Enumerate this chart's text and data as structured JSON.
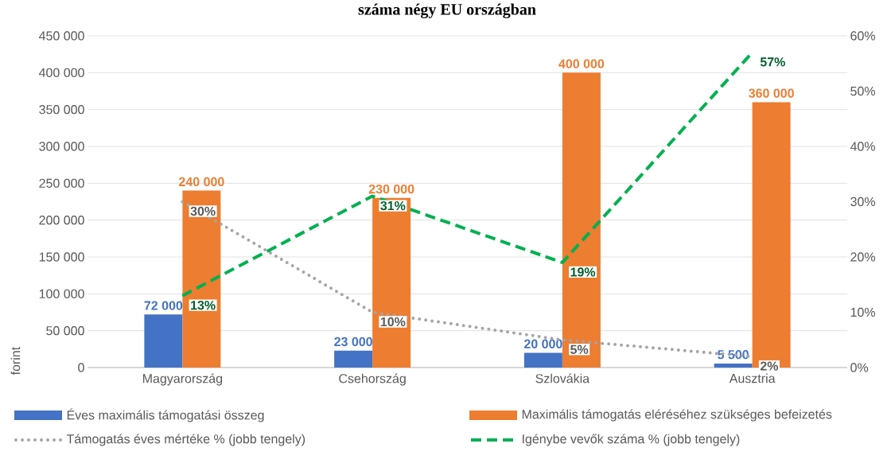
{
  "chart_data": {
    "type": "bar",
    "title": "száma négy EU országban",
    "ylabel": "forint",
    "categories": [
      "Magyarország",
      "Csehország",
      "Szlovákia",
      "Ausztria"
    ],
    "series": [
      {
        "name": "Éves maximális támogatási összeg",
        "color": "#4472c4",
        "values": [
          72000,
          23000,
          20000,
          5500
        ],
        "value_labels": [
          "72 000",
          "23 000",
          "20 000",
          "5 500"
        ]
      },
      {
        "name": "Maximális támogatás eléréséhez szükséges befeizetés",
        "color": "#ed7d31",
        "values": [
          240000,
          230000,
          400000,
          360000
        ],
        "value_labels": [
          "240 000",
          "230 000",
          "400 000",
          "360 000"
        ]
      },
      {
        "name": "Támogatás éves mértéke % (jobb tengely)",
        "type": "line",
        "axis": "y2",
        "color": "#a5a5a5",
        "line_style": "dotted",
        "values": [
          30,
          10,
          5,
          2
        ],
        "value_labels": [
          "30%",
          "10%",
          "5%",
          "2%"
        ]
      },
      {
        "name": "Igénybe vevők száma % (jobb tengely)",
        "type": "line",
        "axis": "y2",
        "color": "#00b050",
        "line_style": "dashed",
        "values": [
          13,
          31,
          19,
          57
        ],
        "value_labels": [
          "13%",
          "31%",
          "19%",
          "57%"
        ]
      }
    ],
    "ylim": [
      0,
      450000
    ],
    "yticks": [
      {
        "value": 0,
        "label": "0"
      },
      {
        "value": 50000,
        "label": "50 000"
      },
      {
        "value": 100000,
        "label": "100 000"
      },
      {
        "value": 150000,
        "label": "150 000"
      },
      {
        "value": 200000,
        "label": "200 000"
      },
      {
        "value": 250000,
        "label": "250 000"
      },
      {
        "value": 300000,
        "label": "300 000"
      },
      {
        "value": 350000,
        "label": "350 000"
      },
      {
        "value": 400000,
        "label": "400 000"
      },
      {
        "value": 450000,
        "label": "450 000"
      }
    ],
    "y2lim": [
      0,
      60
    ],
    "y2ticks": [
      {
        "value": 0,
        "label": "0%"
      },
      {
        "value": 10,
        "label": "10%"
      },
      {
        "value": 20,
        "label": "20%"
      },
      {
        "value": 30,
        "label": "30%"
      },
      {
        "value": 40,
        "label": "40%"
      },
      {
        "value": 50,
        "label": "50%"
      },
      {
        "value": 60,
        "label": "60%"
      }
    ],
    "grid": "y",
    "legend": "bottom",
    "marker": "none"
  }
}
